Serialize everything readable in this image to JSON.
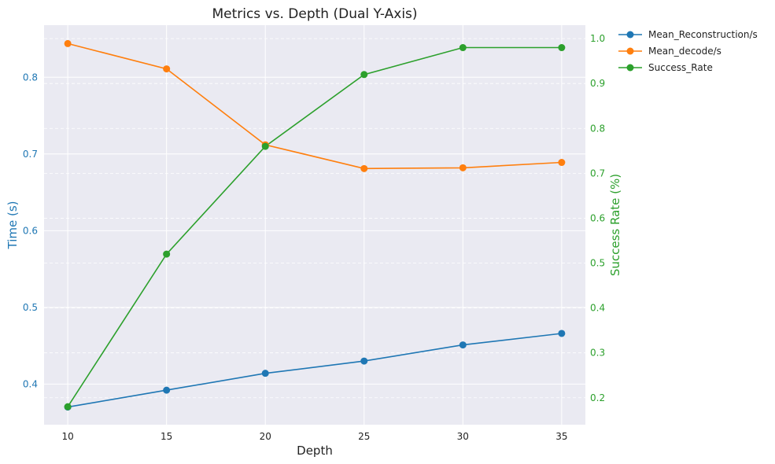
{
  "chart_data": {
    "type": "line",
    "title": "Metrics vs. Depth (Dual Y-Axis)",
    "xlabel": "Depth",
    "ylabel_left": "Time (s)",
    "ylabel_right": "Success Rate (%)",
    "x": [
      10,
      15,
      20,
      25,
      30,
      35
    ],
    "x_ticks": [
      "10",
      "15",
      "20",
      "25",
      "30",
      "35"
    ],
    "xlim": [
      8.8,
      36.2
    ],
    "ylim_left": [
      0.347,
      0.868
    ],
    "ylim_right": [
      0.14,
      1.03
    ],
    "left_ticks": [
      "0.4",
      "0.5",
      "0.6",
      "0.7",
      "0.8"
    ],
    "right_ticks": [
      "0.2",
      "0.3",
      "0.4",
      "0.5",
      "0.6",
      "0.7",
      "0.8",
      "0.9",
      "1.0"
    ],
    "grid": true,
    "legend_position": "outside top-right",
    "series": [
      {
        "name": "Mean_Reconstruction/s",
        "axis": "left",
        "color": "#1f77b4",
        "values": [
          0.37,
          0.392,
          0.414,
          0.43,
          0.451,
          0.466
        ]
      },
      {
        "name": "Mean_decode/s",
        "axis": "left",
        "color": "#ff7f0e",
        "values": [
          0.844,
          0.811,
          0.712,
          0.681,
          0.682,
          0.689
        ]
      },
      {
        "name": "Success_Rate",
        "axis": "right",
        "color": "#2ca02c",
        "values": [
          0.18,
          0.52,
          0.76,
          0.92,
          0.98,
          0.98
        ]
      }
    ],
    "colors": {
      "left_axis": "#1f77b4",
      "right_axis": "#2ca02c",
      "background": "#eaeaf2"
    }
  }
}
